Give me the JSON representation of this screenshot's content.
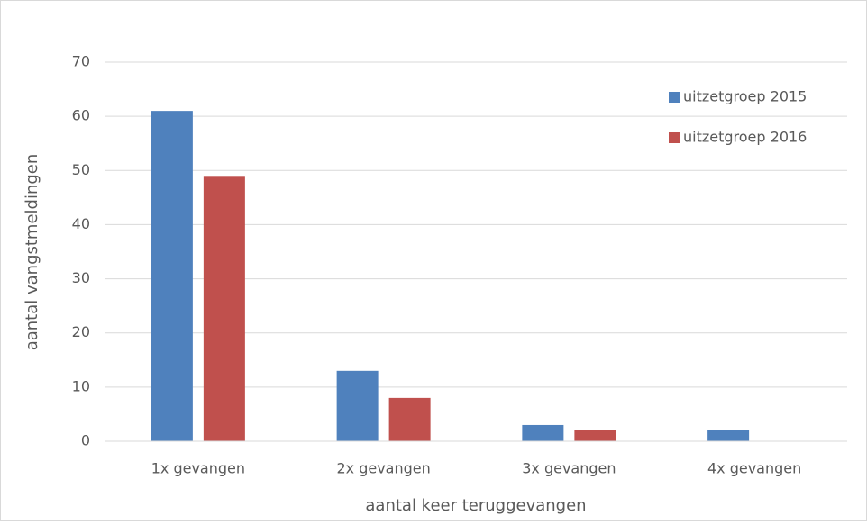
{
  "chart_data": {
    "type": "bar",
    "categories": [
      "1x gevangen",
      "2x gevangen",
      "3x gevangen",
      "4x gevangen"
    ],
    "series": [
      {
        "name": "uitzetgroep 2015",
        "color": "#4f81bd",
        "values": [
          61,
          13,
          3,
          2
        ]
      },
      {
        "name": "uitzetgroep 2016",
        "color": "#c0504d",
        "values": [
          49,
          8,
          2,
          0
        ]
      }
    ],
    "x_label": "aantal keer teruggevangen",
    "y_label": "aantal vangstmeldingen",
    "ylim": [
      0,
      70
    ],
    "yticks": [
      0,
      10,
      20,
      30,
      40,
      50,
      60,
      70
    ],
    "grid": true,
    "legend": "top-right"
  }
}
